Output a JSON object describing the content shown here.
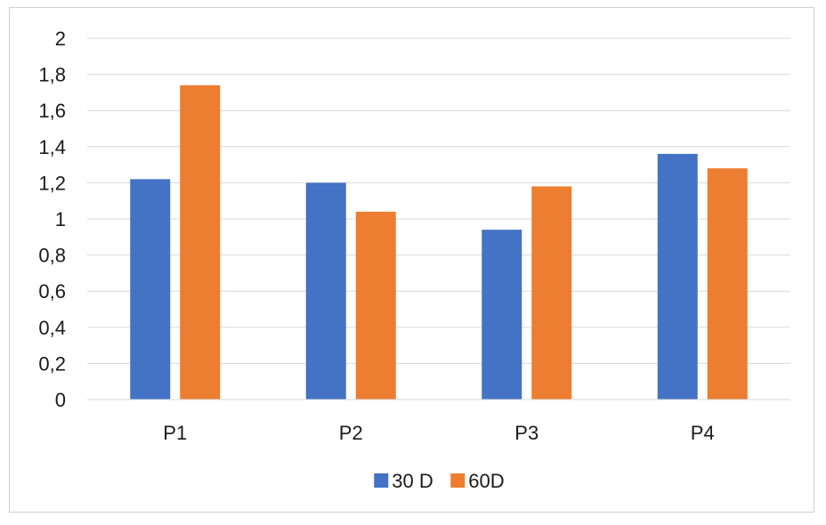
{
  "chart_data": {
    "type": "bar",
    "categories": [
      "P1",
      "P2",
      "P3",
      "P4"
    ],
    "series": [
      {
        "name": "30 D",
        "color": "#4472C4",
        "values": [
          1.22,
          1.2,
          0.94,
          1.36
        ]
      },
      {
        "name": "60D",
        "color": "#ED7D31",
        "values": [
          1.74,
          1.04,
          1.18,
          1.28
        ]
      }
    ],
    "ylim": [
      0,
      2
    ],
    "yticks": [
      "0",
      "0,2",
      "0,4",
      "0,6",
      "0,8",
      "1",
      "1,2",
      "1,4",
      "1,6",
      "1,8",
      "2"
    ],
    "grid": true,
    "gridline_color": "#d9d9d9",
    "legend_position": "bottom"
  }
}
